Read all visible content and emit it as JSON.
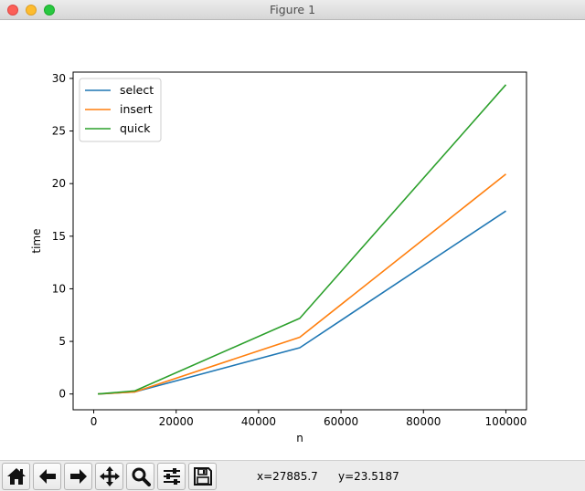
{
  "window": {
    "title": "Figure 1"
  },
  "toolbar": {
    "buttons": [
      {
        "icon": "home-icon",
        "label": "Home"
      },
      {
        "icon": "back-arrow-icon",
        "label": "Back"
      },
      {
        "icon": "forward-arrow-icon",
        "label": "Forward"
      },
      {
        "icon": "pan-move-icon",
        "label": "Pan"
      },
      {
        "icon": "zoom-magnifier-icon",
        "label": "Zoom"
      },
      {
        "icon": "subplots-config-icon",
        "label": "Configure subplots"
      },
      {
        "icon": "save-disk-icon",
        "label": "Save"
      }
    ],
    "coord_x": "x=27885.7",
    "coord_y": "y=23.5187"
  },
  "chart_data": {
    "type": "line",
    "title": "",
    "xlabel": "n",
    "ylabel": "time",
    "xlim": [
      -5000,
      105000
    ],
    "ylim": [
      -1.5,
      30.6
    ],
    "xticks": [
      0,
      20000,
      40000,
      60000,
      80000,
      100000
    ],
    "xtick_labels": [
      "0",
      "20000",
      "40000",
      "60000",
      "80000",
      "100000"
    ],
    "yticks": [
      0,
      5,
      10,
      15,
      20,
      25,
      30
    ],
    "ytick_labels": [
      "0",
      "5",
      "10",
      "15",
      "20",
      "25",
      "30"
    ],
    "legend_position": "top-left",
    "grid": false,
    "x": [
      1000,
      10000,
      50000,
      100000
    ],
    "series": [
      {
        "name": "select",
        "color": "#1f77b4",
        "values": [
          0.0,
          0.2,
          4.4,
          17.4
        ]
      },
      {
        "name": "insert",
        "color": "#ff7f0e",
        "values": [
          0.0,
          0.2,
          5.4,
          20.9
        ]
      },
      {
        "name": "quick",
        "color": "#2ca02c",
        "values": [
          0.0,
          0.3,
          7.2,
          29.4
        ]
      }
    ]
  }
}
